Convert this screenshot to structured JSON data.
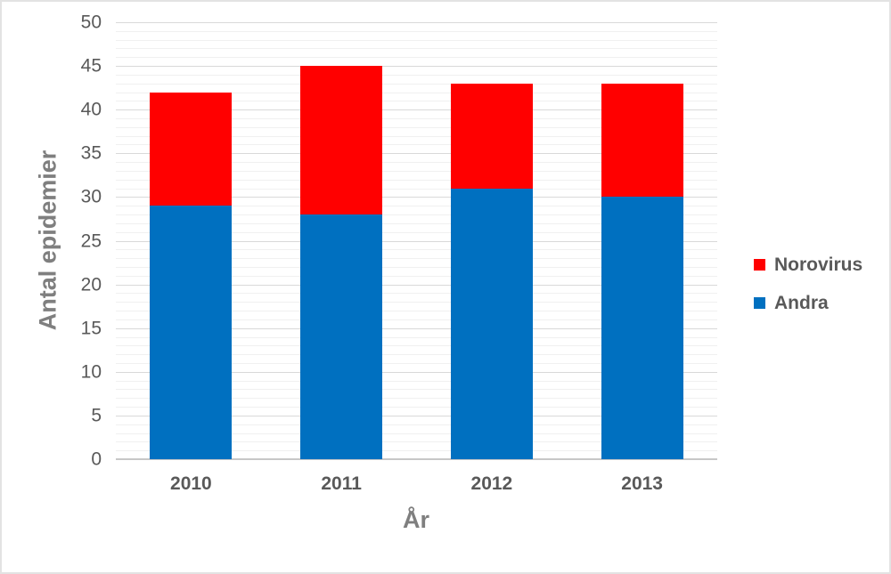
{
  "chart_data": {
    "type": "bar",
    "stacked": true,
    "title": "",
    "xlabel": "År",
    "ylabel": "Antal epidemier",
    "categories": [
      "2010",
      "2011",
      "2012",
      "2013"
    ],
    "series": [
      {
        "name": "Andra",
        "color": "#0070C0",
        "values": [
          29,
          28,
          31,
          30
        ]
      },
      {
        "name": "Norovirus",
        "color": "#FF0000",
        "values": [
          13,
          17,
          12,
          13
        ]
      }
    ],
    "stacked_totals": [
      42,
      45,
      43,
      43
    ],
    "ylim": [
      0,
      50
    ],
    "ytick_step": 5,
    "minor_grid_step": 1,
    "grid": true,
    "legend_position": "right"
  },
  "legend": {
    "items": [
      {
        "label": "Norovirus",
        "color": "#FF0000"
      },
      {
        "label": "Andra",
        "color": "#0070C0"
      }
    ]
  },
  "colors": {
    "norovirus": "#FF0000",
    "andra": "#0070C0",
    "major_gridline": "#d9d9d9",
    "minor_gridline": "#f0f0f0",
    "axis_text": "#595959",
    "axis_title_text": "#7f7f7f",
    "figure_border": "#e3e3e3"
  }
}
